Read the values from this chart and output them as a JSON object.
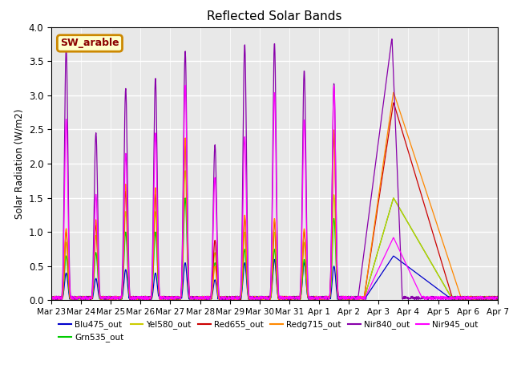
{
  "title": "Reflected Solar Bands",
  "ylabel": "Solar Radiation (W/m2)",
  "legend_label": "SW_arable",
  "series_names": [
    "Blu475_out",
    "Grn535_out",
    "Yel580_out",
    "Red655_out",
    "Redg715_out",
    "Nir840_out",
    "Nir945_out"
  ],
  "series_colors": [
    "#0000cc",
    "#00cc00",
    "#cccc00",
    "#cc0000",
    "#ff8800",
    "#8800aa",
    "#ff00ff"
  ],
  "ylim": [
    0,
    4.0
  ],
  "background_color": "#e8e8e8",
  "x_tick_labels": [
    "Mar 23",
    "Mar 24",
    "Mar 25",
    "Mar 26",
    "Mar 27",
    "Mar 28",
    "Mar 29",
    "Mar 30",
    "Mar 31",
    "Apr 1",
    "Apr 2",
    "Apr 3",
    "Apr 4",
    "Apr 5",
    "Apr 6",
    "Apr 7"
  ],
  "n_points": 1440,
  "n_days": 16,
  "legend_ncol": 6,
  "sw_arable_color": "#8b0000",
  "sw_arable_box_face": "#ffffcc",
  "sw_arable_box_edge": "#cc8800"
}
